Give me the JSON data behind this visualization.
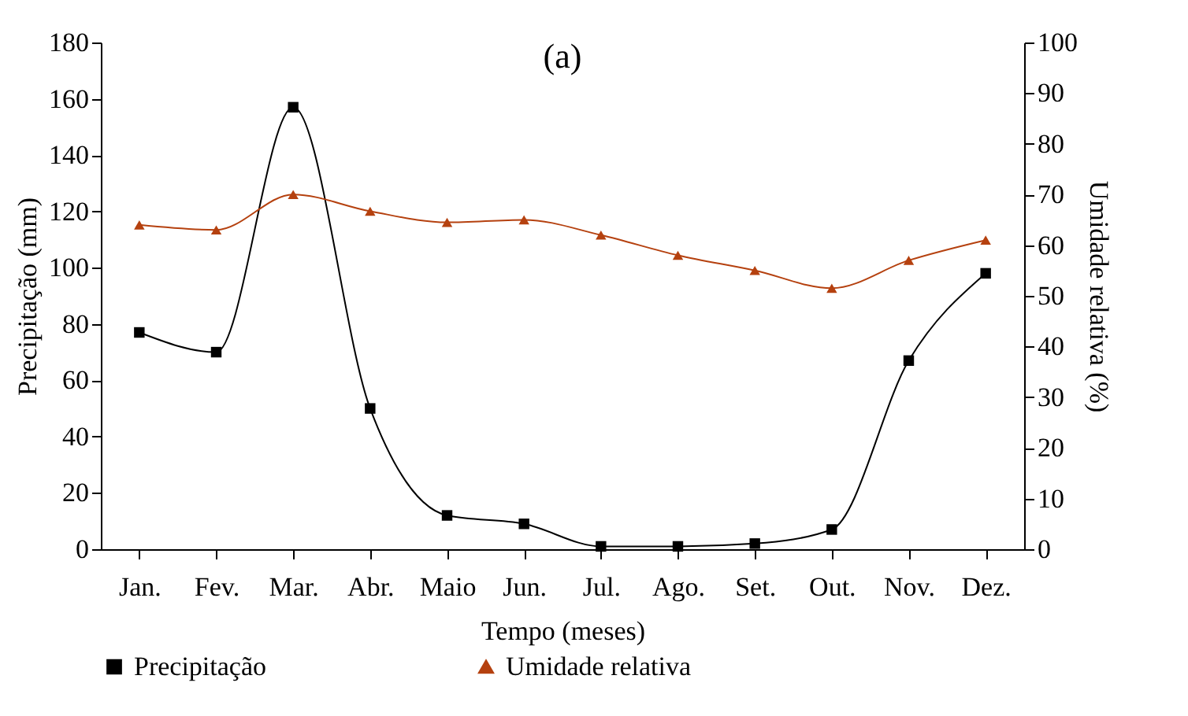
{
  "chart_data": {
    "type": "line",
    "title": "(a)",
    "xlabel": "Tempo (meses)",
    "ylabel": "Precipitação (mm)",
    "y2label": "Umidade relativa (%)",
    "categories": [
      "Jan.",
      "Fev.",
      "Mar.",
      "Abr.",
      "Maio",
      "Jun.",
      "Jul.",
      "Ago.",
      "Set.",
      "Out.",
      "Nov.",
      "Dez."
    ],
    "series": [
      {
        "name": "Precipitação",
        "color": "#000000",
        "marker": "square",
        "values": [
          77,
          70,
          157,
          50,
          12,
          9,
          1,
          1,
          2,
          7,
          67,
          98
        ]
      },
      {
        "name": "Umidade relativa",
        "color": "#b5410f",
        "marker": "triangle",
        "axis": "y2",
        "values": [
          64,
          63,
          70,
          66.7,
          64.5,
          65,
          62,
          58,
          55,
          51.5,
          57,
          61
        ]
      }
    ],
    "ylim": [
      0,
      180
    ],
    "yticks": [
      0,
      20,
      40,
      60,
      80,
      100,
      120,
      140,
      160,
      180
    ],
    "y2lim": [
      0,
      100
    ],
    "y2ticks": [
      0,
      10,
      20,
      30,
      40,
      50,
      60,
      70,
      80,
      90,
      100
    ],
    "grid": false,
    "legend": "bottom",
    "line_style": "solid"
  }
}
